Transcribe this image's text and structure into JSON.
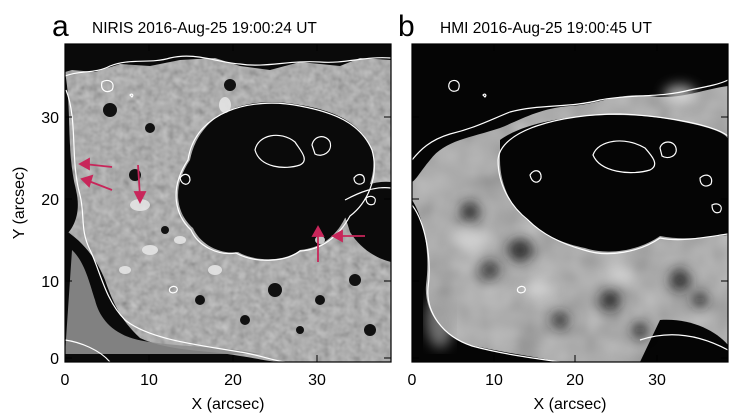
{
  "figure": {
    "panels": [
      {
        "letter": "a",
        "title": "NIRIS 2016-Aug-25 19:00:24 UT",
        "xlabel": "X (arcsec)",
        "ylabel": "Y (arcsec)",
        "xticks": [
          "0",
          "10",
          "20",
          "30"
        ],
        "yticks": [
          "0",
          "10",
          "20",
          "30"
        ],
        "xlim": [
          0,
          39
        ],
        "ylim": [
          -0.5,
          38.5
        ]
      },
      {
        "letter": "b",
        "title": "HMI 2016-Aug-25 19:00:45 UT",
        "xlabel": "X (arcsec)",
        "ylabel": "",
        "xticks": [
          "0",
          "10",
          "20",
          "30"
        ],
        "yticks": [],
        "xlim": [
          0,
          39
        ],
        "ylim": [
          -0.5,
          38.5
        ]
      }
    ],
    "colors": {
      "background_gray": "#9a9a9a",
      "contour": "#ffffff",
      "arrows": "#c8265a"
    }
  }
}
